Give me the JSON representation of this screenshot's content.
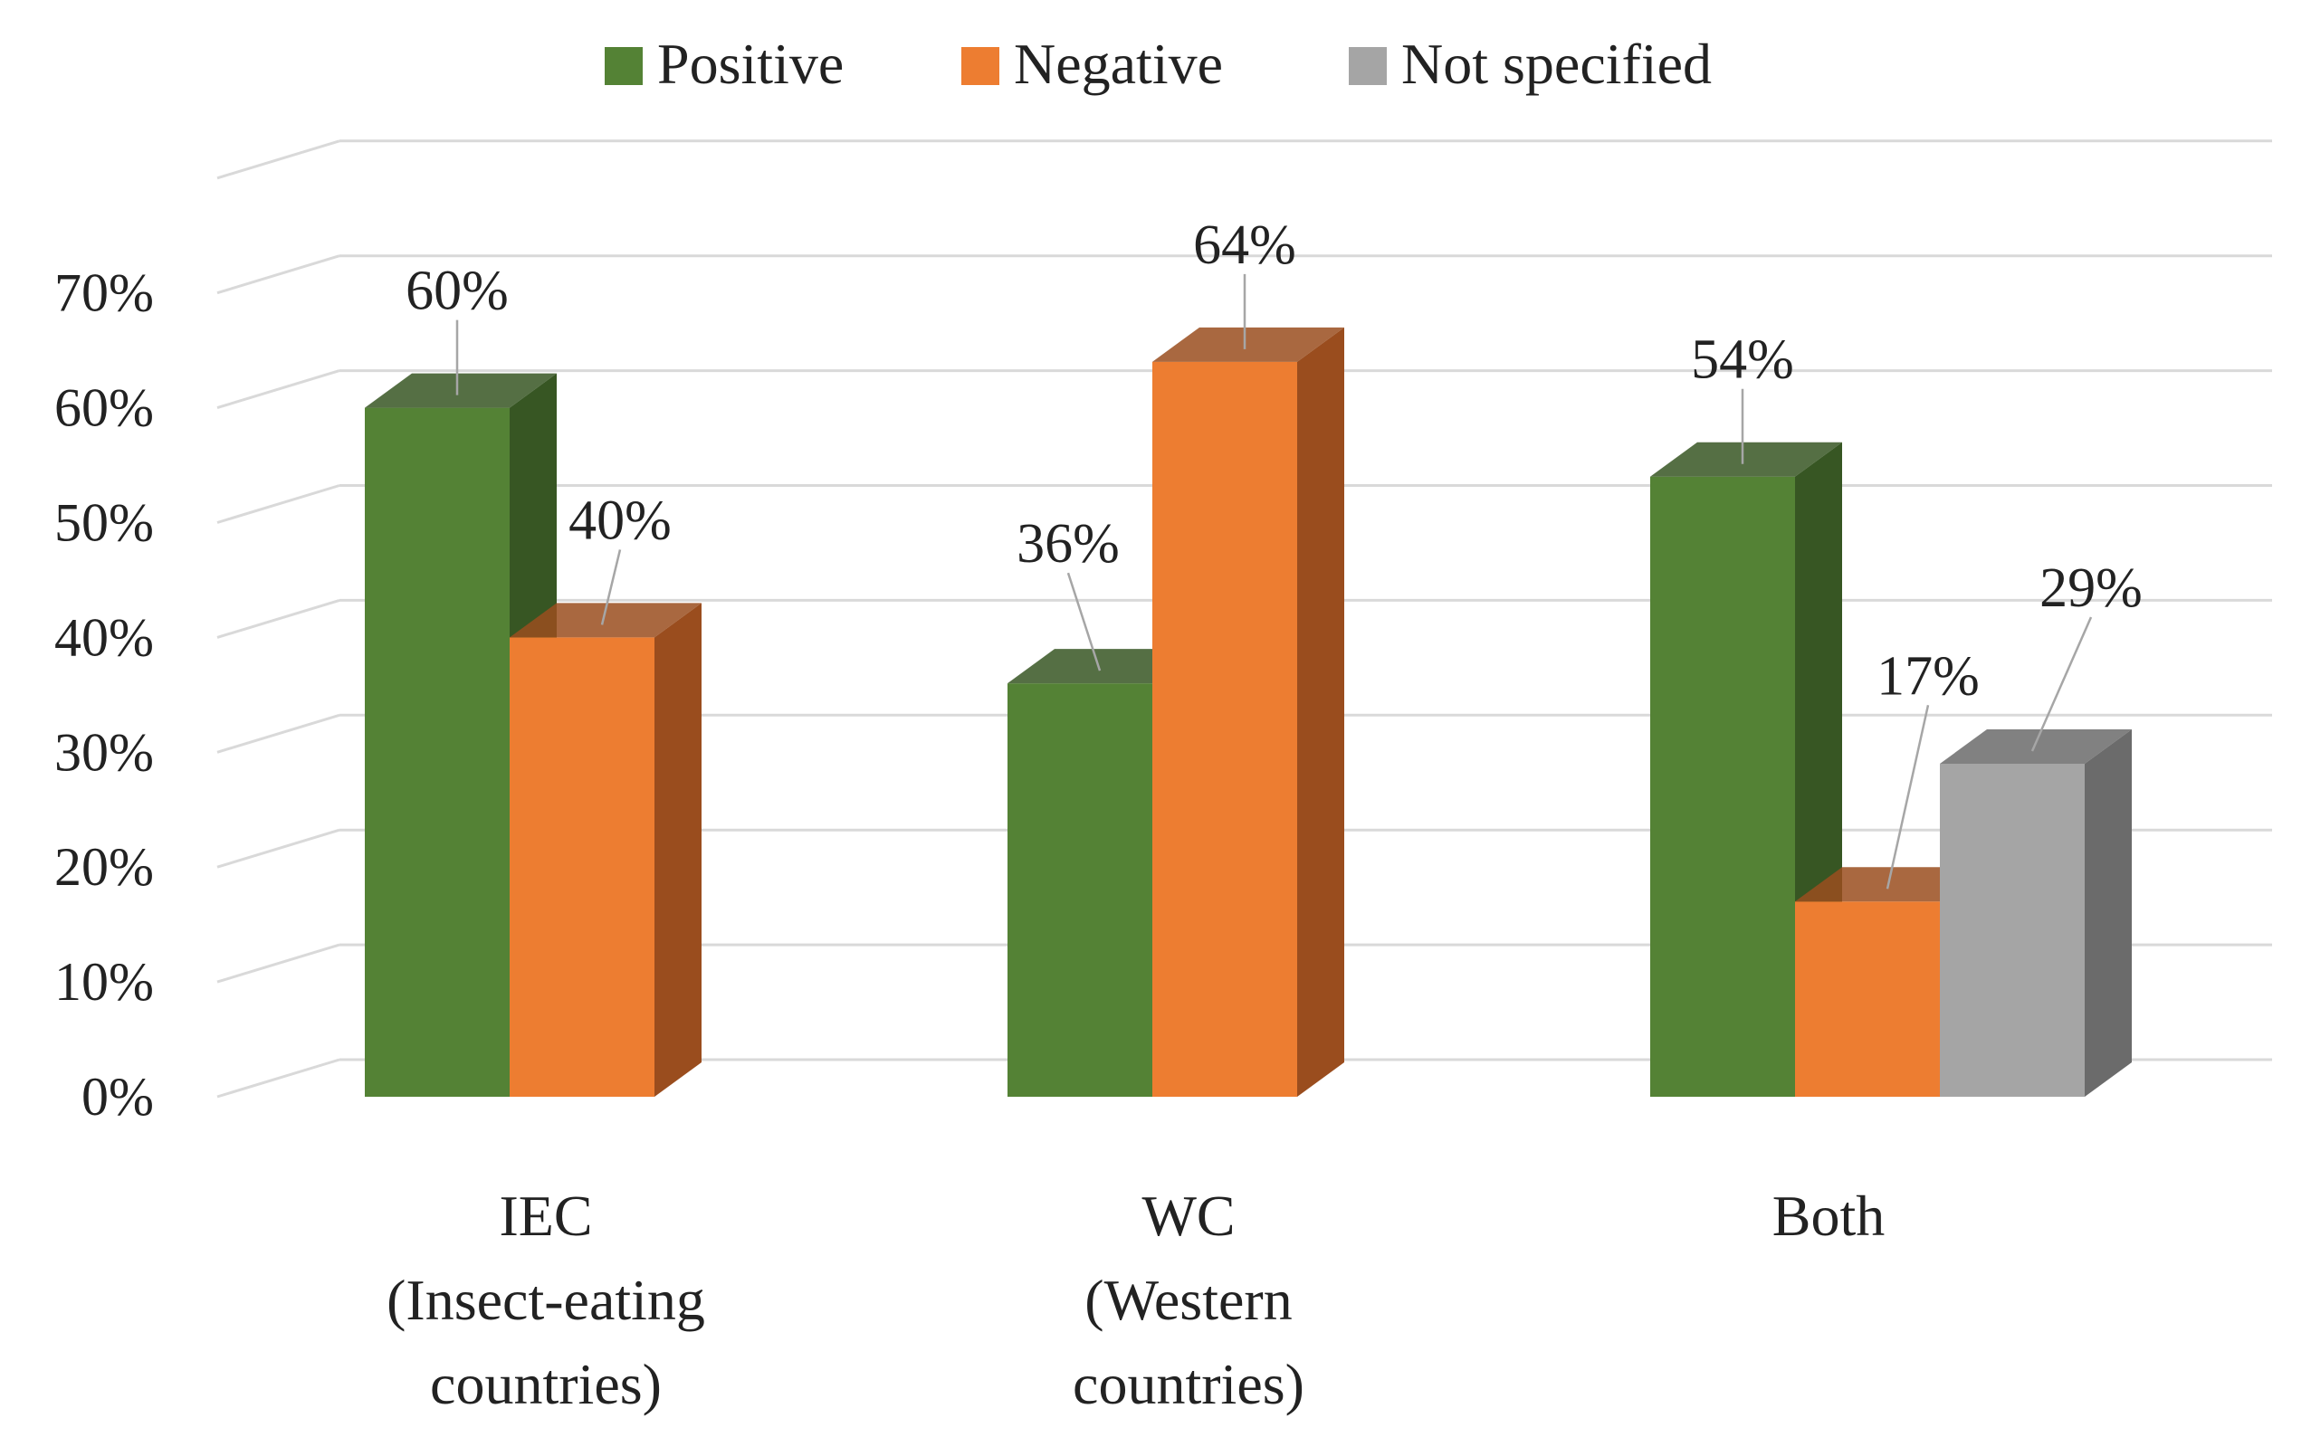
{
  "chart_data": {
    "type": "bar",
    "style": "3d-clustered-column",
    "title": "",
    "xlabel": "",
    "ylabel": "",
    "categories": [
      [
        "IEC",
        "(Insect-eating",
        "countries)"
      ],
      [
        "WC",
        "(Western",
        "countries)"
      ],
      [
        "Both"
      ]
    ],
    "series": [
      {
        "name": "Positive",
        "color": "#548235",
        "side_color": "#375623",
        "values": [
          60,
          36,
          54
        ]
      },
      {
        "name": "Negative",
        "color": "#ED7D31",
        "side_color": "#9A4D1E",
        "values": [
          40,
          64,
          17
        ]
      },
      {
        "name": "Not specified",
        "color": "#A5A5A5",
        "side_color": "#6B6B6B",
        "values": [
          null,
          null,
          29
        ]
      }
    ],
    "data_labels": [
      [
        "60%",
        "40%",
        null
      ],
      [
        "36%",
        "64%",
        null
      ],
      [
        "54%",
        "17%",
        "29%"
      ]
    ],
    "yticks": [
      "0%",
      "10%",
      "20%",
      "30%",
      "40%",
      "50%",
      "60%",
      "70%"
    ],
    "ylim": [
      0,
      70
    ],
    "y_unit": "%",
    "grid": true,
    "legend_position": "top-center"
  }
}
